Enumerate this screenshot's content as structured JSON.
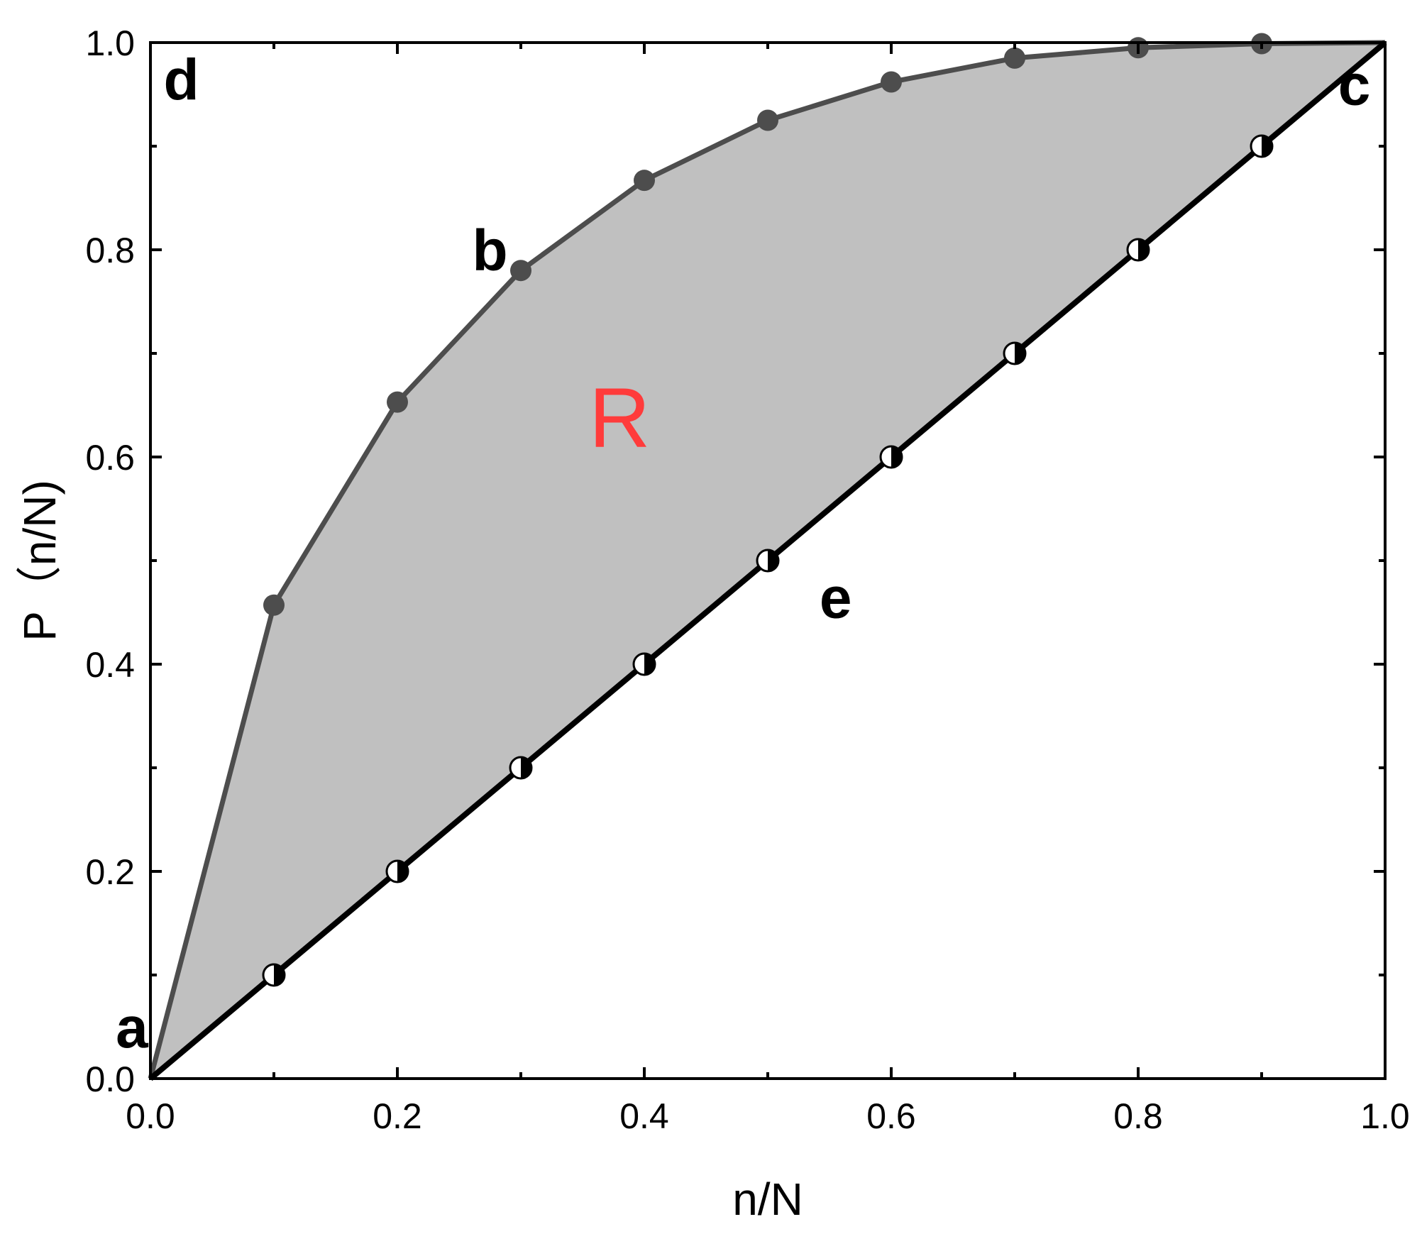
{
  "chart_data": {
    "type": "line",
    "title": "",
    "xlabel": "n/N",
    "ylabel": "P（n/N)",
    "xlim": [
      0,
      1
    ],
    "ylim": [
      0,
      1
    ],
    "x_ticks": [
      "0.0",
      "0.2",
      "0.4",
      "0.6",
      "0.8",
      "1.0"
    ],
    "y_ticks": [
      "0.0",
      "0.2",
      "0.4",
      "0.6",
      "0.8",
      "1.0"
    ],
    "grid": false,
    "legend": "none",
    "fill_between_series": true,
    "fill_color": "#c0c0c0",
    "series": [
      {
        "marker": "filled-circle",
        "color": "#4d4d4d",
        "x": [
          0.0,
          0.1,
          0.2,
          0.3,
          0.4,
          0.5,
          0.6,
          0.7,
          0.8,
          0.9,
          1.0
        ],
        "y": [
          0.0,
          0.457,
          0.653,
          0.78,
          0.867,
          0.925,
          0.962,
          0.985,
          0.995,
          0.999,
          1.0
        ]
      },
      {
        "marker": "half-filled-circle",
        "color": "#000000",
        "x": [
          0.0,
          0.1,
          0.2,
          0.3,
          0.4,
          0.5,
          0.6,
          0.7,
          0.8,
          0.9,
          1.0
        ],
        "y": [
          0.0,
          0.1,
          0.2,
          0.3,
          0.4,
          0.5,
          0.6,
          0.7,
          0.8,
          0.9,
          1.0
        ]
      }
    ],
    "annotations": [
      {
        "text": "a",
        "x": -0.015,
        "y": 0.03
      },
      {
        "text": "b",
        "x": 0.275,
        "y": 0.78
      },
      {
        "text": "c",
        "x": 0.975,
        "y": 0.94
      },
      {
        "text": "d",
        "x": 0.025,
        "y": 0.945
      },
      {
        "text": "e",
        "x": 0.555,
        "y": 0.445
      },
      {
        "text": "R",
        "x": 0.38,
        "y": 0.61,
        "color": "#ff3b3b"
      }
    ]
  }
}
